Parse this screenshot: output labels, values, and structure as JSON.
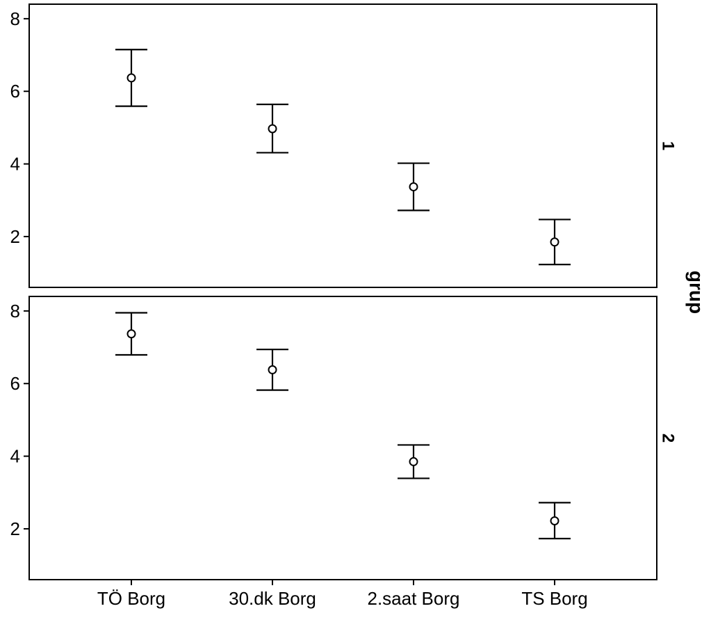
{
  "chart_data": {
    "type": "errorbar",
    "title": "",
    "xlabel": "",
    "ylabel": "",
    "facet_title": "grup",
    "categories": [
      "TÖ Borg",
      "30.dk Borg",
      "2.saat Borg",
      "TS Borg"
    ],
    "ylim": [
      0.6,
      8.4
    ],
    "yticks": [
      2,
      4,
      6,
      8
    ],
    "grid": false,
    "legend": "none",
    "panels": [
      {
        "name": "1",
        "means": [
          6.37,
          4.97,
          3.37,
          1.85
        ],
        "lower": [
          5.59,
          4.31,
          2.72,
          1.23
        ],
        "upper": [
          7.15,
          5.64,
          4.02,
          2.47
        ]
      },
      {
        "name": "2",
        "means": [
          7.37,
          6.38,
          3.85,
          2.22
        ],
        "lower": [
          6.79,
          5.82,
          3.39,
          1.73
        ],
        "upper": [
          7.95,
          6.94,
          4.31,
          2.72
        ]
      }
    ]
  }
}
